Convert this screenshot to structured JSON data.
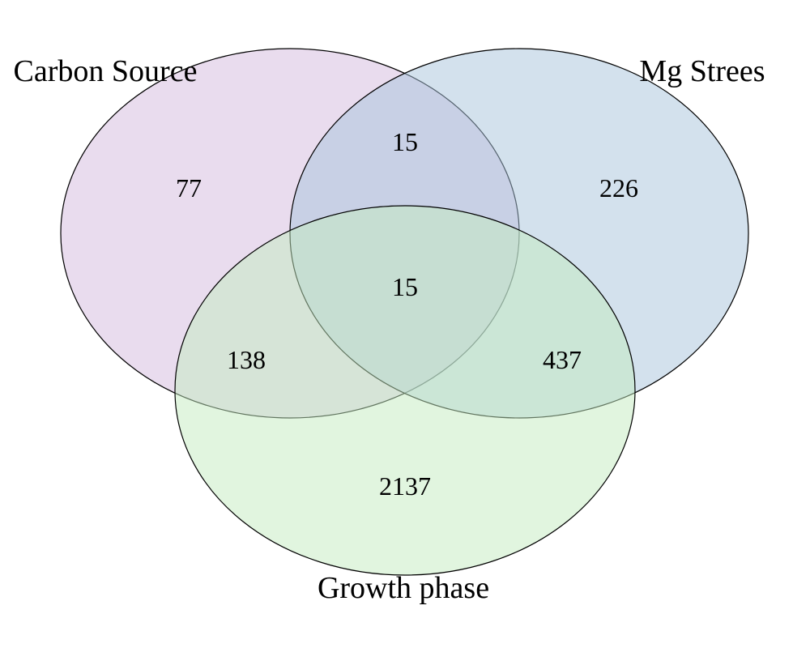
{
  "chart_data": {
    "type": "venn",
    "sets": [
      {
        "key": "A",
        "name": "Carbon Source",
        "color": "#c8a8d4"
      },
      {
        "key": "B",
        "name": "Mg Strees",
        "color": "#a8c4dc"
      },
      {
        "key": "C",
        "name": "Growth phase",
        "color": "#c4ecc0"
      }
    ],
    "regions": {
      "A_only": 77,
      "B_only": 226,
      "C_only": 2137,
      "A_B": 15,
      "A_C": 138,
      "B_C": 437,
      "A_B_C": 15
    }
  }
}
